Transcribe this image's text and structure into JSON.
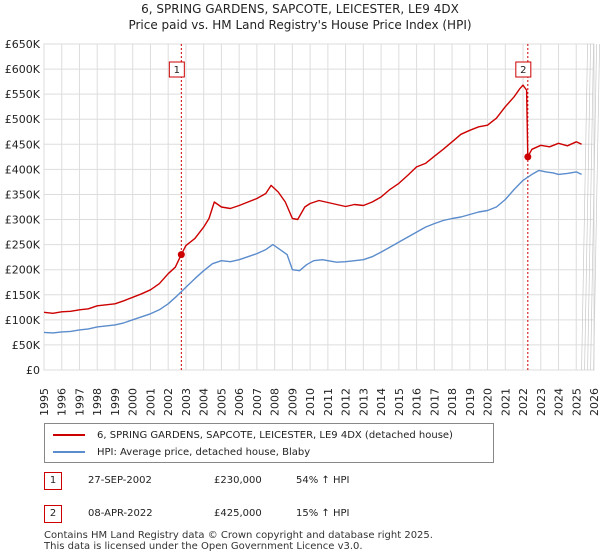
{
  "title": "6, SPRING GARDENS, SAPCOTE, LEICESTER, LE9 4DX",
  "subtitle": "Price paid vs. HM Land Registry's House Price Index (HPI)",
  "colors": {
    "property": "#cc0000",
    "hpi": "#5b8ccc",
    "marker": "#cc0000"
  },
  "chart_data": {
    "type": "line",
    "xlim": [
      1995,
      2026
    ],
    "ylim": [
      0,
      650000
    ],
    "x_ticks": [
      "1995",
      "1996",
      "1997",
      "1998",
      "1999",
      "2000",
      "2001",
      "2002",
      "2003",
      "2004",
      "2005",
      "2006",
      "2007",
      "2008",
      "2009",
      "2010",
      "2011",
      "2012",
      "2013",
      "2014",
      "2015",
      "2016",
      "2017",
      "2018",
      "2019",
      "2020",
      "2021",
      "2022",
      "2023",
      "2024",
      "2025",
      "2026"
    ],
    "y_ticks": [
      {
        "value": 0,
        "label": "£0"
      },
      {
        "value": 50000,
        "label": "£50K"
      },
      {
        "value": 100000,
        "label": "£100K"
      },
      {
        "value": 150000,
        "label": "£150K"
      },
      {
        "value": 200000,
        "label": "£200K"
      },
      {
        "value": 250000,
        "label": "£250K"
      },
      {
        "value": 300000,
        "label": "£300K"
      },
      {
        "value": 350000,
        "label": "£350K"
      },
      {
        "value": 400000,
        "label": "£400K"
      },
      {
        "value": 450000,
        "label": "£450K"
      },
      {
        "value": 500000,
        "label": "£500K"
      },
      {
        "value": 550000,
        "label": "£550K"
      },
      {
        "value": 600000,
        "label": "£600K"
      },
      {
        "value": 650000,
        "label": "£650K"
      }
    ],
    "grid": true,
    "series": [
      {
        "name": "6, SPRING GARDENS, SAPCOTE, LEICESTER, LE9 4DX (detached house)",
        "x": [
          1995.0,
          1995.5,
          1996.0,
          1996.5,
          1997.0,
          1997.5,
          1998.0,
          1998.5,
          1999.0,
          1999.5,
          2000.0,
          2000.5,
          2001.0,
          2001.5,
          2002.0,
          2002.4,
          2002.74,
          2003.0,
          2003.5,
          2004.0,
          2004.3,
          2004.6,
          2005.0,
          2005.5,
          2006.0,
          2006.5,
          2007.0,
          2007.5,
          2007.8,
          2008.2,
          2008.6,
          2009.0,
          2009.3,
          2009.7,
          2010.0,
          2010.5,
          2011.0,
          2011.5,
          2012.0,
          2012.5,
          2013.0,
          2013.5,
          2014.0,
          2014.5,
          2015.0,
          2015.5,
          2016.0,
          2016.5,
          2017.0,
          2017.5,
          2018.0,
          2018.5,
          2019.0,
          2019.5,
          2020.0,
          2020.5,
          2021.0,
          2021.5,
          2021.8,
          2022.0,
          2022.2,
          2022.27,
          2022.5,
          2023.0,
          2023.5,
          2024.0,
          2024.5,
          2025.0,
          2025.3
        ],
        "values": [
          115000,
          113000,
          116000,
          117000,
          120000,
          122000,
          128000,
          130000,
          132000,
          138000,
          145000,
          152000,
          160000,
          172000,
          192000,
          205000,
          230000,
          248000,
          262000,
          285000,
          302000,
          335000,
          325000,
          322000,
          328000,
          335000,
          342000,
          352000,
          368000,
          355000,
          335000,
          302000,
          300000,
          325000,
          332000,
          338000,
          334000,
          330000,
          326000,
          330000,
          328000,
          335000,
          345000,
          360000,
          372000,
          388000,
          405000,
          412000,
          426000,
          440000,
          455000,
          470000,
          478000,
          485000,
          488000,
          502000,
          525000,
          545000,
          560000,
          568000,
          558000,
          425000,
          440000,
          448000,
          445000,
          452000,
          447000,
          455000,
          450000
        ]
      },
      {
        "name": "HPI: Average price, detached house, Blaby",
        "x": [
          1995.0,
          1995.5,
          1996.0,
          1996.5,
          1997.0,
          1997.5,
          1998.0,
          1998.5,
          1999.0,
          1999.5,
          2000.0,
          2000.5,
          2001.0,
          2001.5,
          2002.0,
          2002.5,
          2003.0,
          2003.5,
          2004.0,
          2004.5,
          2005.0,
          2005.5,
          2006.0,
          2006.5,
          2007.0,
          2007.5,
          2007.9,
          2008.3,
          2008.7,
          2009.0,
          2009.4,
          2009.8,
          2010.2,
          2010.7,
          2011.0,
          2011.5,
          2012.0,
          2012.5,
          2013.0,
          2013.5,
          2014.0,
          2014.5,
          2015.0,
          2015.5,
          2016.0,
          2016.5,
          2017.0,
          2017.5,
          2018.0,
          2018.5,
          2019.0,
          2019.5,
          2020.0,
          2020.5,
          2021.0,
          2021.5,
          2022.0,
          2022.5,
          2022.9,
          2023.3,
          2023.7,
          2024.0,
          2024.5,
          2025.0,
          2025.3
        ],
        "values": [
          75000,
          74000,
          76000,
          77000,
          80000,
          82000,
          86000,
          88000,
          90000,
          94000,
          100000,
          106000,
          112000,
          120000,
          132000,
          148000,
          165000,
          182000,
          198000,
          212000,
          218000,
          216000,
          220000,
          226000,
          232000,
          240000,
          250000,
          240000,
          230000,
          200000,
          198000,
          210000,
          218000,
          220000,
          218000,
          215000,
          216000,
          218000,
          220000,
          226000,
          235000,
          245000,
          255000,
          265000,
          275000,
          285000,
          292000,
          298000,
          302000,
          305000,
          310000,
          315000,
          318000,
          325000,
          340000,
          360000,
          378000,
          390000,
          398000,
          395000,
          393000,
          390000,
          392000,
          395000,
          390000
        ]
      }
    ],
    "sales": [
      {
        "id": "1",
        "x": 2002.74,
        "value": 230000,
        "date": "27-SEP-2002",
        "price": "£230,000",
        "hpi": "54% ↑ HPI"
      },
      {
        "id": "2",
        "x": 2022.27,
        "value": 425000,
        "date": "08-APR-2022",
        "price": "£425,000",
        "hpi": "15% ↑ HPI"
      }
    ],
    "legend": {
      "position": "bottom"
    }
  },
  "footer": {
    "line1": "Contains HM Land Registry data © Crown copyright and database right 2025.",
    "line2": "This data is licensed under the Open Government Licence v3.0."
  }
}
